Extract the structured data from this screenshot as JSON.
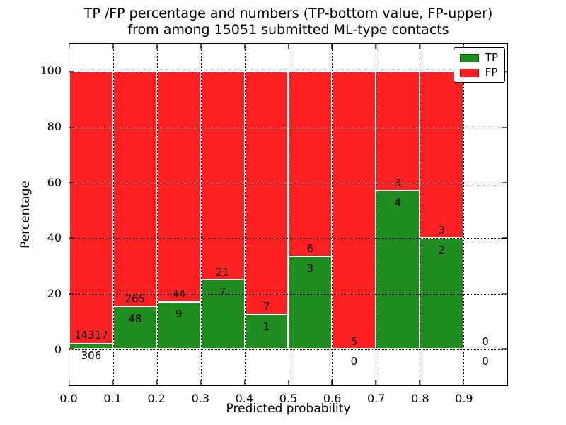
{
  "figure": {
    "background": "#ffffff"
  },
  "chart_data": {
    "type": "bar",
    "stacked": true,
    "units": "percent",
    "title": "TP /FP percentage and numbers (TP-bottom value, FP-upper)\nfrom among 15051 submitted ML-type contacts",
    "title_line1": "TP /FP percentage and numbers (TP-bottom value, FP-upper)",
    "title_line2": "from among 15051 submitted ML-type contacts",
    "total_contacts": 15051,
    "xlabel": "Predicted probability",
    "ylabel": "Percentage",
    "xlim": [
      0.0,
      1.0
    ],
    "ylim": [
      -13,
      110
    ],
    "bar_width": 0.1,
    "x_ticks": [
      "0.0",
      "0.1",
      "0.2",
      "0.3",
      "0.4",
      "0.5",
      "0.6",
      "0.7",
      "0.8",
      "0.9"
    ],
    "y_ticks": [
      "0",
      "20",
      "40",
      "60",
      "80",
      "100"
    ],
    "grid": "dotted",
    "grid_color": "#000000",
    "legend": {
      "position": "upper right",
      "entries": [
        {
          "label": "TP",
          "color": "#1f8c1f"
        },
        {
          "label": "FP",
          "color": "#ff2121"
        }
      ]
    },
    "series": [
      {
        "name": "TP",
        "color": "#1f8c1f",
        "role": "bottom"
      },
      {
        "name": "FP",
        "color": "#ff2121",
        "role": "upper"
      }
    ],
    "bins": [
      {
        "range": "0.0-0.1",
        "x_start": 0.0,
        "x_end": 0.1,
        "tp": 306,
        "fp": 14317,
        "tp_pct": 2.1
      },
      {
        "range": "0.1-0.2",
        "x_start": 0.1,
        "x_end": 0.2,
        "tp": 48,
        "fp": 265,
        "tp_pct": 15.3
      },
      {
        "range": "0.2-0.3",
        "x_start": 0.2,
        "x_end": 0.3,
        "tp": 9,
        "fp": 44,
        "tp_pct": 17.0
      },
      {
        "range": "0.3-0.4",
        "x_start": 0.3,
        "x_end": 0.4,
        "tp": 7,
        "fp": 21,
        "tp_pct": 25.0
      },
      {
        "range": "0.4-0.5",
        "x_start": 0.4,
        "x_end": 0.5,
        "tp": 1,
        "fp": 7,
        "tp_pct": 12.5
      },
      {
        "range": "0.5-0.6",
        "x_start": 0.5,
        "x_end": 0.6,
        "tp": 3,
        "fp": 6,
        "tp_pct": 33.3
      },
      {
        "range": "0.6-0.7",
        "x_start": 0.6,
        "x_end": 0.7,
        "tp": 0,
        "fp": 5,
        "tp_pct": 0.0
      },
      {
        "range": "0.7-0.8",
        "x_start": 0.7,
        "x_end": 0.8,
        "tp": 4,
        "fp": 3,
        "tp_pct": 57.1
      },
      {
        "range": "0.8-0.9",
        "x_start": 0.8,
        "x_end": 0.9,
        "tp": 2,
        "fp": 3,
        "tp_pct": 40.0
      },
      {
        "range": "0.9-1.0",
        "x_start": 0.9,
        "x_end": 1.0,
        "tp": 0,
        "fp": 0,
        "tp_pct": null
      }
    ]
  }
}
